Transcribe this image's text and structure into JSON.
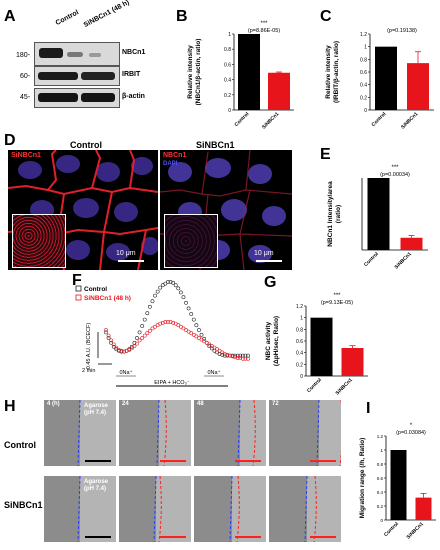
{
  "panels": {
    "A": "A",
    "B": "B",
    "C": "C",
    "D": "D",
    "E": "E",
    "F": "F",
    "G": "G",
    "H": "H",
    "I": "I"
  },
  "western": {
    "lanes": [
      "Control",
      "SiNBCn1 (48 h)"
    ],
    "markers": [
      "180-",
      "60-",
      "45-"
    ],
    "proteins": [
      "NBCn1",
      "IRBIT",
      "β-actin"
    ],
    "colors": {
      "band": "#1a1a1a",
      "background": "#d9d9d9"
    }
  },
  "microscopy": {
    "titles": [
      "Control",
      "SiNBCn1"
    ],
    "channel_labels": [
      "SiNBCn1",
      "NBCn1"
    ],
    "dapi_label": "DAPI",
    "scale": "10 μm",
    "colors": {
      "membrane": "#e0202a",
      "nuclei": "#4a3aa8"
    }
  },
  "scratch": {
    "rows": [
      "Control",
      "SiNBCn1"
    ],
    "time_labels": [
      "4 (h)",
      "24",
      "48",
      "72"
    ],
    "agarose_label": [
      "Agarose",
      "(pH 7.4)"
    ],
    "colors": {
      "blue_line": "#2a3cff",
      "red_line": "#ff2020",
      "scale_bar": "#ff2020"
    }
  },
  "chart_data": [
    {
      "id": "B",
      "type": "bar",
      "categories": [
        "Control",
        "SiNBCn1"
      ],
      "values": [
        1.0,
        0.49
      ],
      "errors": [
        0,
        0.01
      ],
      "colors": [
        "#000000",
        "#e8141c"
      ],
      "ylabel": [
        "Relative intensity",
        "(NBCn1/β-actin, ratio)"
      ],
      "ylim": [
        0,
        1
      ],
      "ticks": [
        "0",
        "0.2",
        "0.4",
        "0.6",
        "0.8",
        "1"
      ],
      "annotation": "***",
      "pvalue": "(p=8.86E-05)"
    },
    {
      "id": "C",
      "type": "bar",
      "categories": [
        "Control",
        "SiNBCn1"
      ],
      "values": [
        1.0,
        0.74
      ],
      "errors": [
        0,
        0.18
      ],
      "colors": [
        "#000000",
        "#e8141c"
      ],
      "ylabel": [
        "Relative intensity",
        "(IRBIT/β-actin, ratio)"
      ],
      "ylim": [
        0,
        1.2
      ],
      "ticks": [
        "0",
        "0.2",
        "0.4",
        "0.6",
        "0.8",
        "1",
        "1.2"
      ],
      "annotation": "",
      "pvalue": "(p=0.19138)"
    },
    {
      "id": "E",
      "type": "bar",
      "categories": [
        "Control",
        "SiNBCn1"
      ],
      "values": [
        1.0,
        0.17
      ],
      "errors": [
        0,
        0.03
      ],
      "colors": [
        "#000000",
        "#e8141c"
      ],
      "ylabel": [
        "NBCn1 Intensity/area",
        "(ratio)"
      ],
      "ylim": [
        0,
        1
      ],
      "ticks": [],
      "annotation": "***",
      "pvalue": "(p=0.00034)"
    },
    {
      "id": "F",
      "type": "scatter",
      "legend": [
        "Control",
        "SiNBCn1 (48 h)"
      ],
      "colors": [
        "#222222",
        "#e8141c"
      ],
      "ylabel": "0.45 A.U. (BCECF)",
      "time_scale": "2 min",
      "na_labels": [
        "0Na⁺",
        "0Na⁺"
      ],
      "treatment": "EIPA + HCO₃⁻",
      "series": [
        {
          "name": "Control",
          "x": [
            0,
            0.2,
            0.4,
            0.6,
            0.8,
            1.0,
            1.2,
            1.4,
            1.6,
            1.8,
            2.0,
            2.2,
            2.4,
            2.6,
            2.8,
            3.0,
            3.2,
            3.4,
            3.6,
            3.8,
            4.0,
            4.2,
            4.4,
            4.6,
            4.8,
            5.0,
            5.2,
            5.4,
            5.6,
            5.8,
            6.0,
            6.2,
            6.4,
            6.6,
            6.8,
            7.0,
            7.2,
            7.4,
            7.6,
            7.8,
            8.0,
            8.2,
            8.4,
            8.6,
            8.8,
            9.0,
            9.2,
            9.4,
            9.6,
            9.8,
            10.0,
            10.2,
            10.4,
            10.6,
            10.8,
            11.0
          ],
          "y": [
            0.37,
            0.3,
            0.24,
            0.19,
            0.16,
            0.14,
            0.13,
            0.13,
            0.14,
            0.16,
            0.19,
            0.24,
            0.3,
            0.37,
            0.45,
            0.53,
            0.61,
            0.69,
            0.76,
            0.83,
            0.88,
            0.93,
            0.96,
            0.98,
            1.0,
            1.0,
            0.99,
            0.96,
            0.92,
            0.87,
            0.81,
            0.74,
            0.67,
            0.6,
            0.53,
            0.46,
            0.4,
            0.34,
            0.29,
            0.24,
            0.2,
            0.17,
            0.14,
            0.12,
            0.1,
            0.09,
            0.08,
            0.08,
            0.08,
            0.08,
            0.08,
            0.08,
            0.08,
            0.08,
            0.08,
            0.08
          ]
        },
        {
          "name": "SiNBCn1 (48 h)",
          "x": [
            0,
            0.2,
            0.4,
            0.6,
            0.8,
            1.0,
            1.2,
            1.4,
            1.6,
            1.8,
            2.0,
            2.2,
            2.4,
            2.6,
            2.8,
            3.0,
            3.2,
            3.4,
            3.6,
            3.8,
            4.0,
            4.2,
            4.4,
            4.6,
            4.8,
            5.0,
            5.2,
            5.4,
            5.6,
            5.8,
            6.0,
            6.2,
            6.4,
            6.6,
            6.8,
            7.0,
            7.2,
            7.4,
            7.6,
            7.8,
            8.0,
            8.2,
            8.4,
            8.6,
            8.8,
            9.0,
            9.2,
            9.4,
            9.6,
            9.8,
            10.0,
            10.2,
            10.4,
            10.6,
            10.8,
            11.0
          ],
          "y": [
            0.4,
            0.33,
            0.27,
            0.22,
            0.18,
            0.15,
            0.14,
            0.13,
            0.14,
            0.15,
            0.17,
            0.2,
            0.23,
            0.27,
            0.3,
            0.33,
            0.36,
            0.39,
            0.42,
            0.44,
            0.46,
            0.48,
            0.49,
            0.5,
            0.5,
            0.5,
            0.49,
            0.48,
            0.46,
            0.44,
            0.42,
            0.4,
            0.38,
            0.36,
            0.34,
            0.32,
            0.3,
            0.28,
            0.26,
            0.24,
            0.22,
            0.2,
            0.18,
            0.16,
            0.14,
            0.12,
            0.1,
            0.09,
            0.08,
            0.07,
            0.06,
            0.05,
            0.05,
            0.04,
            0.04,
            0.04
          ]
        }
      ]
    },
    {
      "id": "G",
      "type": "bar",
      "categories": [
        "Control",
        "SiNBCn1"
      ],
      "values": [
        1.0,
        0.48
      ],
      "errors": [
        0,
        0.04
      ],
      "colors": [
        "#000000",
        "#e8141c"
      ],
      "ylabel": [
        "NBC activity",
        "(ΔpH/sec, Ratio)"
      ],
      "ylim": [
        0,
        1.2
      ],
      "ticks": [
        "0",
        "0.2",
        "0.4",
        "0.6",
        "0.8",
        "1",
        "1.2"
      ],
      "annotation": "***",
      "pvalue": "(p=9.13E-05)"
    },
    {
      "id": "I",
      "type": "bar",
      "categories": [
        "Control",
        "SiNBCn1"
      ],
      "values": [
        1.0,
        0.32
      ],
      "errors": [
        0,
        0.06
      ],
      "colors": [
        "#000000",
        "#e8141c"
      ],
      "ylabel": [
        "Migration range (/h, Ratio)"
      ],
      "ylim": [
        0,
        1.2
      ],
      "ticks": [
        "0",
        "0.2",
        "0.4",
        "0.6",
        "0.8",
        "1",
        "1.2"
      ],
      "annotation": "*",
      "pvalue": "(p=0.03084)"
    }
  ]
}
